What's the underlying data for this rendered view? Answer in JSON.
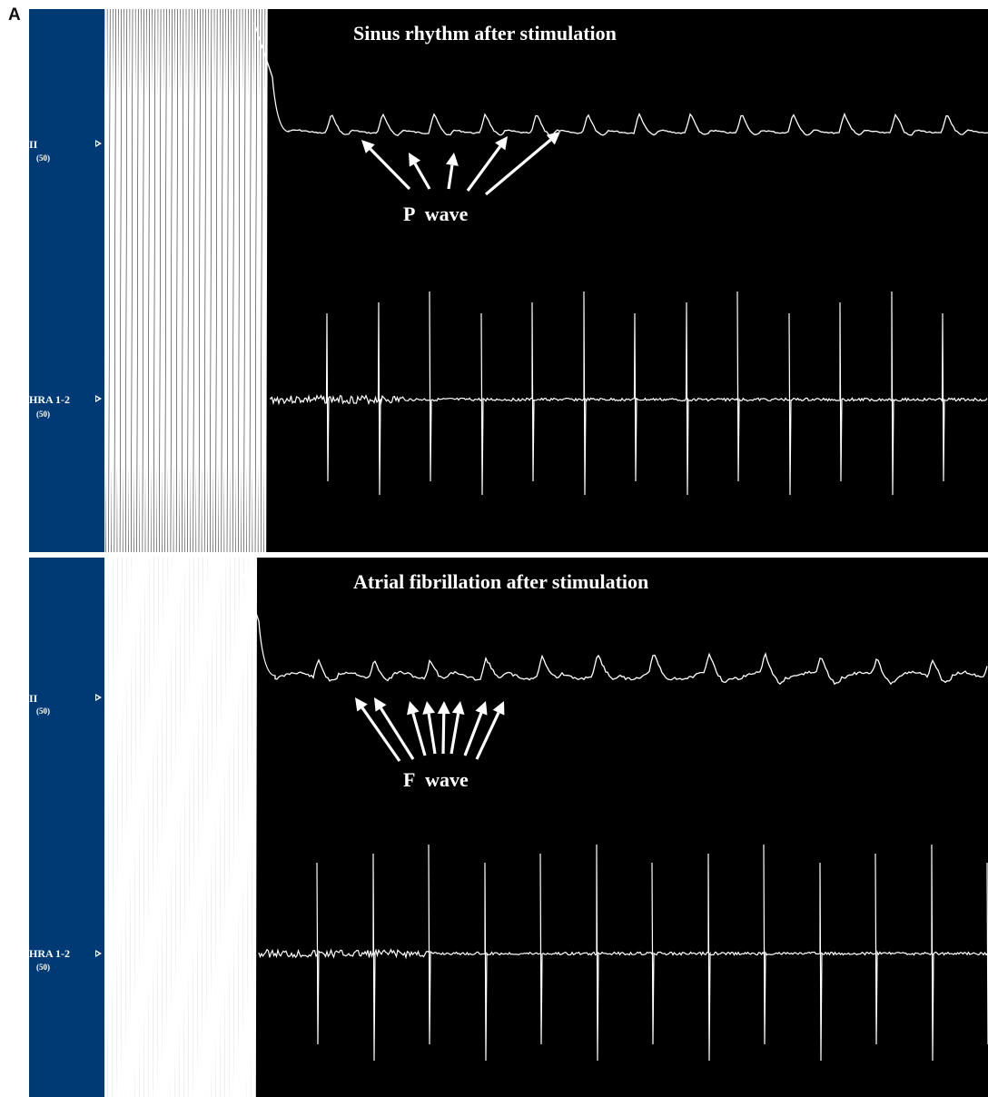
{
  "figure": {
    "panel_label": "A",
    "colors": {
      "background": "#000000",
      "channel_bar": "#003a74",
      "trace": "#ffffff"
    }
  },
  "chart_data": [
    {
      "type": "line",
      "title": "Sinus rhythm after stimulation",
      "channels": [
        {
          "label": "II",
          "gain": "(50)"
        },
        {
          "label": "HRA 1-2",
          "gain": "(50)"
        }
      ],
      "annotation": {
        "label": "P  wave",
        "arrow_count": 5
      },
      "stimulation_spike_count": 29,
      "beat_count_after_stimulation": 14
    },
    {
      "type": "line",
      "title": "Atrial fibrillation after stimulation",
      "channels": [
        {
          "label": "II",
          "gain": "(50)"
        },
        {
          "label": "HRA 1-2",
          "gain": "(50)"
        }
      ],
      "annotation": {
        "label": "F  wave",
        "arrow_count": 8
      },
      "stimulation_spike_count": 34,
      "beat_count_after_stimulation": 13
    }
  ]
}
